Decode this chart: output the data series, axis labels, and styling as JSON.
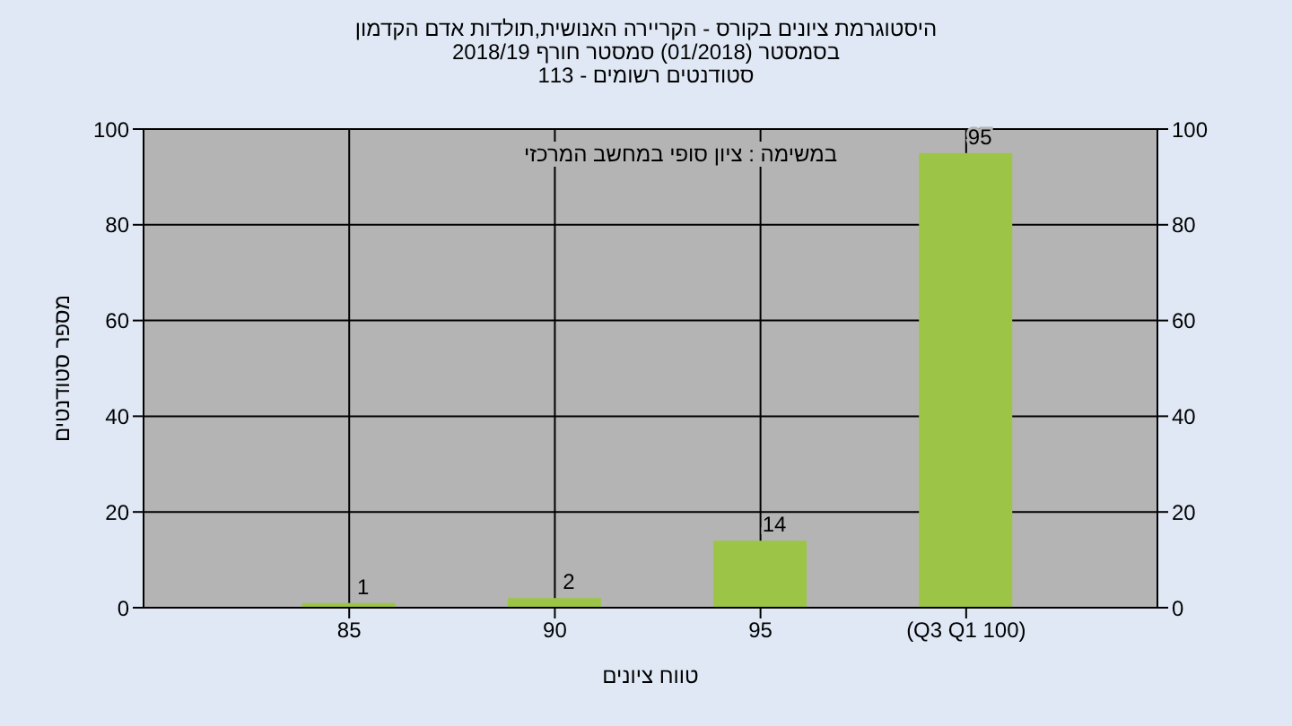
{
  "chart_data": {
    "type": "bar",
    "title": "היסטוגרמת ציונים בקורס - הקריירה האנושית,תולדות אדם הקדמון",
    "subtitle": "בסמסטר  (01/2018)  סמסטר חורף 2018/19\nסטודנטים רשומים - 113",
    "xlabel": "טווח ציונים",
    "ylabel": "מספר סטודנטים",
    "categories": [
      "85",
      "90",
      "95",
      "(Q3 Q1 100)"
    ],
    "values": [
      1,
      2,
      14,
      95
    ],
    "color": "#9cc447",
    "ylim": [
      0,
      100
    ],
    "yticks": [
      0,
      20,
      40,
      60,
      80,
      100
    ],
    "y2lim": [
      0,
      100
    ],
    "y2ticks": [
      0,
      20,
      40,
      60,
      80,
      100
    ],
    "grid": true,
    "data_labels": true,
    "annotations": [
      "במשימה : ציון סופי במחשב המרכזי"
    ]
  }
}
